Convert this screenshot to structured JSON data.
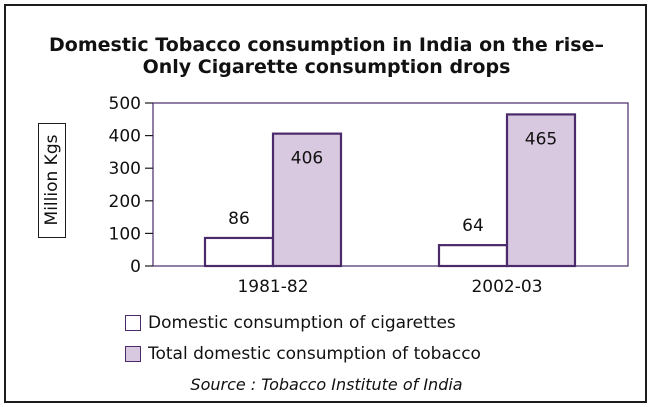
{
  "chart_data": {
    "type": "bar",
    "title_line1": "Domestic Tobacco consumption in India on the rise–",
    "title_line2": "Only Cigarette consumption drops",
    "xlabel": "",
    "ylabel": "Million Kgs",
    "categories": [
      "1981-82",
      "2002-03"
    ],
    "series": [
      {
        "name": "Domestic consumption of cigarettes",
        "values": [
          86,
          64
        ],
        "color": "#ffffff"
      },
      {
        "name": "Total domestic consumption of tobacco",
        "values": [
          406,
          465
        ],
        "color": "#d8c8e0"
      }
    ],
    "yticks": [
      "0",
      "100",
      "200",
      "300",
      "400",
      "500"
    ],
    "ylim": [
      0,
      500
    ],
    "grid": false,
    "legend_position": "bottom",
    "bar_border_color": "#4a2a6a",
    "source": "Source : Tobacco Institute of India"
  }
}
